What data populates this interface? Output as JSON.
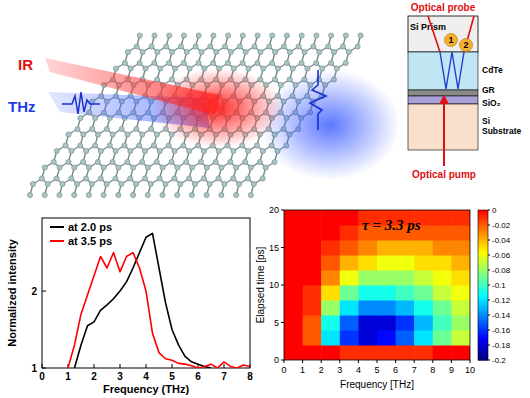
{
  "illustration": {
    "ir_label": "IR",
    "thz_label": "THz"
  },
  "schematic": {
    "probe_label": "Optical probe",
    "pump_label": "Optical pump",
    "prism_label": "Si Prism",
    "layers": [
      "CdTe",
      "GR",
      "SiO₂",
      "Si Substrate"
    ],
    "spots": [
      "1",
      "2"
    ]
  },
  "chart_data": [
    {
      "type": "line",
      "xlabel": "Frequency (THz)",
      "ylabel": "Normalized intensity",
      "x": [
        1.0,
        1.25,
        1.5,
        1.75,
        2.0,
        2.25,
        2.5,
        2.75,
        3.0,
        3.25,
        3.5,
        3.75,
        4.0,
        4.25,
        4.5,
        4.75,
        5.0,
        5.25,
        5.5,
        5.75,
        6.0,
        6.25,
        6.5,
        6.75,
        7.0,
        7.25,
        7.5,
        7.75,
        8.0
      ],
      "xlim": [
        0,
        8
      ],
      "ylim": [
        1,
        2.95
      ],
      "xticks": [
        0,
        1,
        2,
        3,
        4,
        5,
        6,
        7,
        8
      ],
      "yticks": [
        1,
        2
      ],
      "legend": "upper left",
      "series": [
        {
          "name": "at 2.0 ps",
          "color": "#000000",
          "values": [
            null,
            1.0,
            1.3,
            1.55,
            1.6,
            1.75,
            1.82,
            1.9,
            2.0,
            2.12,
            2.3,
            2.5,
            2.7,
            2.75,
            2.3,
            1.85,
            1.5,
            1.3,
            1.15,
            1.08,
            1.05,
            1.02,
            1.0,
            null,
            null,
            null,
            null,
            null,
            null
          ]
        },
        {
          "name": "at 3.5 ps",
          "color": "#ff0000",
          "values": [
            1.0,
            1.3,
            1.7,
            1.95,
            2.2,
            2.45,
            2.3,
            2.5,
            2.25,
            2.45,
            2.5,
            2.3,
            2.0,
            1.45,
            1.2,
            1.12,
            1.1,
            1.06,
            1.05,
            1.03,
            1.0,
            1.02,
            1.05,
            1.0,
            1.08,
            1.02,
            1.0,
            1.04,
            1.02
          ]
        }
      ]
    },
    {
      "type": "heatmap",
      "xlabel": "Frequency [THz]",
      "ylabel": "Elapsed time [ps]",
      "xlim": [
        0,
        10
      ],
      "ylim": [
        0,
        20
      ],
      "xticks": [
        0,
        1,
        2,
        3,
        4,
        5,
        6,
        7,
        8,
        9,
        10
      ],
      "yticks": [
        0,
        5,
        10,
        15,
        20
      ],
      "x_bins": [
        0,
        1,
        2,
        3,
        4,
        5,
        6,
        7,
        8,
        9,
        10
      ],
      "y_bins": [
        0,
        2,
        4,
        6,
        8,
        10,
        12,
        14,
        16,
        18,
        20
      ],
      "cells": [
        [
          0,
          0,
          0,
          -0.01,
          -0.01,
          -0.01,
          -0.01,
          -0.01,
          0,
          0
        ],
        [
          0,
          -0.02,
          -0.12,
          -0.16,
          -0.18,
          -0.17,
          -0.15,
          -0.12,
          -0.09,
          -0.07
        ],
        [
          0,
          -0.02,
          -0.11,
          -0.15,
          -0.18,
          -0.18,
          -0.16,
          -0.13,
          -0.1,
          -0.08
        ],
        [
          0,
          -0.01,
          -0.08,
          -0.12,
          -0.14,
          -0.14,
          -0.13,
          -0.11,
          -0.09,
          -0.07
        ],
        [
          0,
          -0.01,
          -0.05,
          -0.09,
          -0.11,
          -0.11,
          -0.1,
          -0.09,
          -0.07,
          -0.06
        ],
        [
          0,
          0,
          -0.03,
          -0.06,
          -0.08,
          -0.08,
          -0.08,
          -0.07,
          -0.06,
          -0.05
        ],
        [
          0,
          0,
          -0.02,
          -0.04,
          -0.05,
          -0.06,
          -0.06,
          -0.05,
          -0.05,
          -0.04
        ],
        [
          0,
          0,
          -0.01,
          -0.02,
          -0.03,
          -0.04,
          -0.04,
          -0.04,
          -0.03,
          -0.03
        ],
        [
          0,
          0,
          0,
          -0.01,
          -0.02,
          -0.02,
          -0.02,
          -0.02,
          -0.02,
          -0.02
        ],
        [
          0,
          0,
          0,
          0,
          -0.01,
          -0.01,
          -0.01,
          -0.01,
          -0.01,
          -0.01
        ]
      ],
      "colorbar_range": [
        -0.2,
        0
      ],
      "colorbar_ticks": [
        0,
        -0.02,
        -0.04,
        -0.06,
        -0.08,
        -0.1,
        -0.12,
        -0.14,
        -0.16,
        -0.18,
        -0.2
      ],
      "annotation": "τ = 3.3 ps"
    }
  ]
}
